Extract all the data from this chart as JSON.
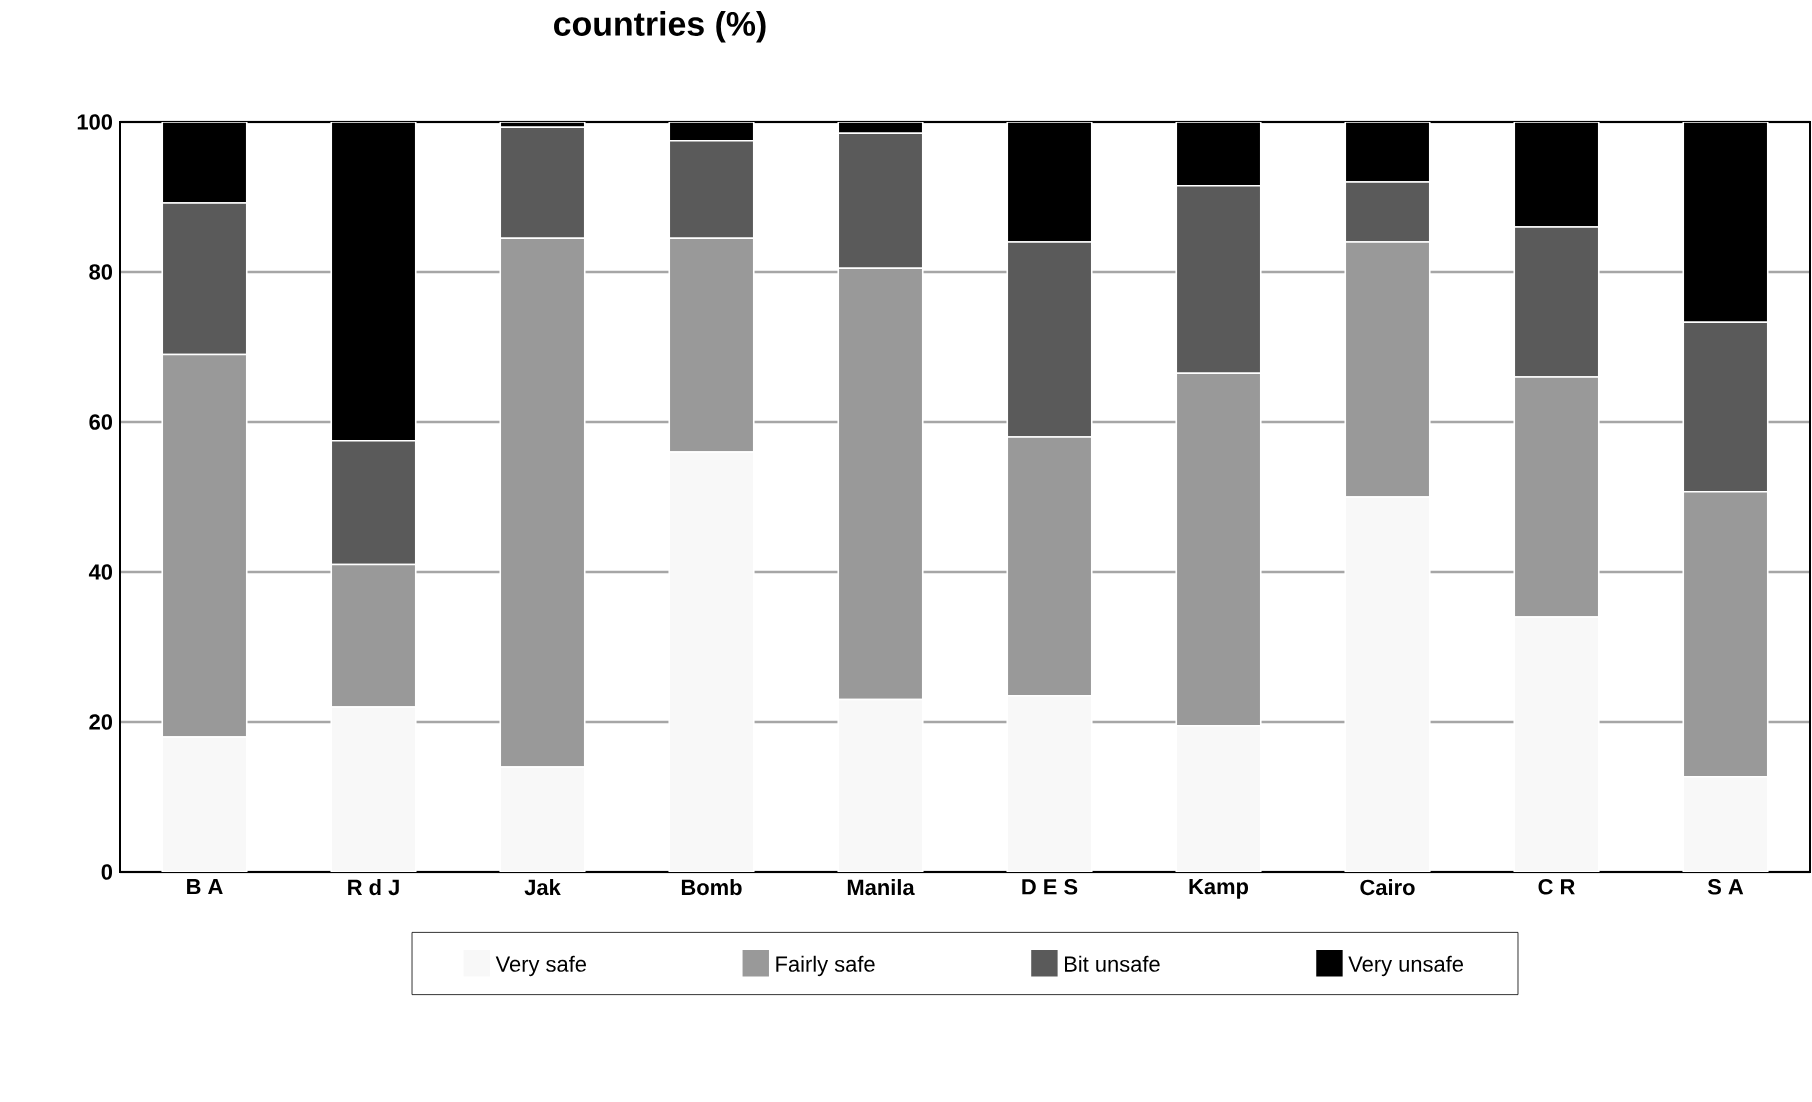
{
  "chart_data": {
    "type": "bar",
    "title": "countries (%)",
    "stacked": true,
    "categories": [
      "B A",
      "R d J",
      "Jak",
      "Bomb",
      "Manila",
      "D E S",
      "Kamp",
      "Cairo",
      "C R",
      "S A"
    ],
    "series": [
      {
        "name": "Very safe",
        "color": "#f8f8f8",
        "values": [
          18,
          22,
          14,
          56,
          23,
          23.5,
          19.5,
          50,
          34,
          12.7
        ]
      },
      {
        "name": "Fairly safe",
        "color": "#999999",
        "values": [
          51,
          19,
          70.5,
          28.5,
          57.5,
          34.5,
          47,
          34,
          32,
          38
        ]
      },
      {
        "name": "Bit unsafe",
        "color": "#5a5a5a",
        "values": [
          20.2,
          16.5,
          14.8,
          13,
          18,
          26,
          25,
          8,
          20,
          22.6
        ]
      },
      {
        "name": "Very unsafe",
        "color": "#000000",
        "values": [
          10.8,
          42.5,
          0.7,
          2.5,
          1.5,
          16,
          8.5,
          8,
          14,
          26.7
        ]
      }
    ],
    "ylim": [
      0,
      100
    ],
    "yticks": [
      0,
      20,
      40,
      60,
      80,
      100
    ],
    "grid": "y",
    "legend": "bottom"
  }
}
